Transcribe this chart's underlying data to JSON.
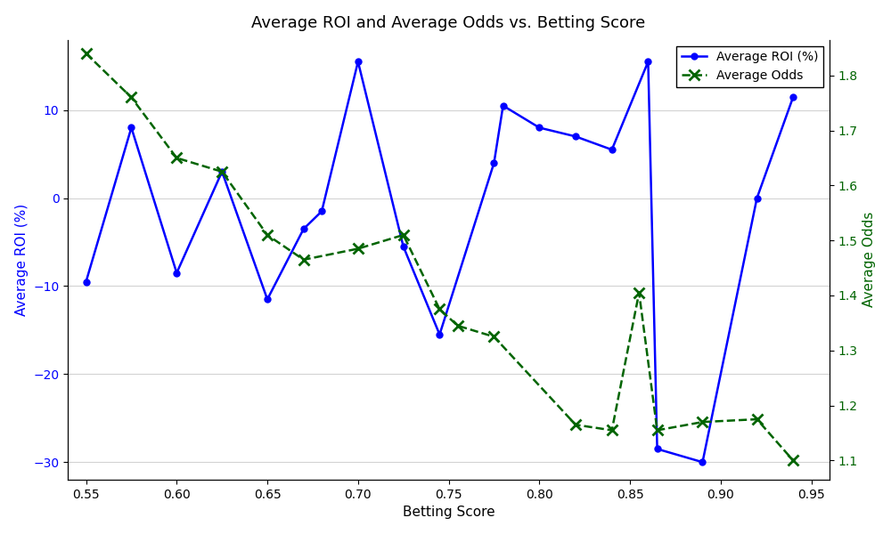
{
  "title": "Average ROI and Average Odds vs. Betting Score",
  "xlabel": "Betting Score",
  "ylabel_left": "Average ROI (%)",
  "ylabel_right": "Average Odds",
  "roi_x": [
    0.55,
    0.575,
    0.6,
    0.625,
    0.65,
    0.67,
    0.68,
    0.7,
    0.725,
    0.745,
    0.775,
    0.78,
    0.8,
    0.82,
    0.84,
    0.86,
    0.865,
    0.89,
    0.92,
    0.94
  ],
  "roi_y": [
    -9.5,
    8.0,
    -8.5,
    3.0,
    -11.5,
    -3.5,
    -1.5,
    15.5,
    -5.5,
    -15.5,
    4.0,
    10.5,
    8.0,
    7.0,
    5.5,
    15.5,
    -28.5,
    -30.0,
    0.0,
    11.5
  ],
  "odds_x": [
    0.55,
    0.575,
    0.6,
    0.625,
    0.65,
    0.67,
    0.7,
    0.725,
    0.745,
    0.755,
    0.775,
    0.82,
    0.84,
    0.855,
    0.865,
    0.89,
    0.92,
    0.94
  ],
  "odds_y": [
    1.84,
    1.76,
    1.65,
    1.625,
    1.51,
    1.465,
    1.485,
    1.51,
    1.375,
    1.345,
    1.325,
    1.165,
    1.155,
    1.405,
    1.155,
    1.17,
    1.175,
    1.1
  ],
  "roi_color": "#0000ff",
  "odds_color": "#006400",
  "xlim": [
    0.54,
    0.96
  ],
  "ylim_left": [
    -32,
    18
  ],
  "ylim_right": [
    1.065,
    1.865
  ],
  "yticks_left": [
    -30,
    -20,
    -10,
    0,
    10
  ],
  "yticks_right": [
    1.1,
    1.2,
    1.3,
    1.4,
    1.5,
    1.6,
    1.7,
    1.8
  ],
  "xticks": [
    0.55,
    0.6,
    0.65,
    0.7,
    0.75,
    0.8,
    0.85,
    0.9,
    0.95
  ],
  "legend_roi": "Average ROI (%)",
  "legend_odds": "Average Odds",
  "title_fontsize": 13,
  "label_fontsize": 11,
  "tick_fontsize": 10,
  "figsize": [
    10.0,
    6.0
  ],
  "dpi": 100,
  "bg_color": "#ffffff",
  "plot_bg_color": "#ffffff"
}
